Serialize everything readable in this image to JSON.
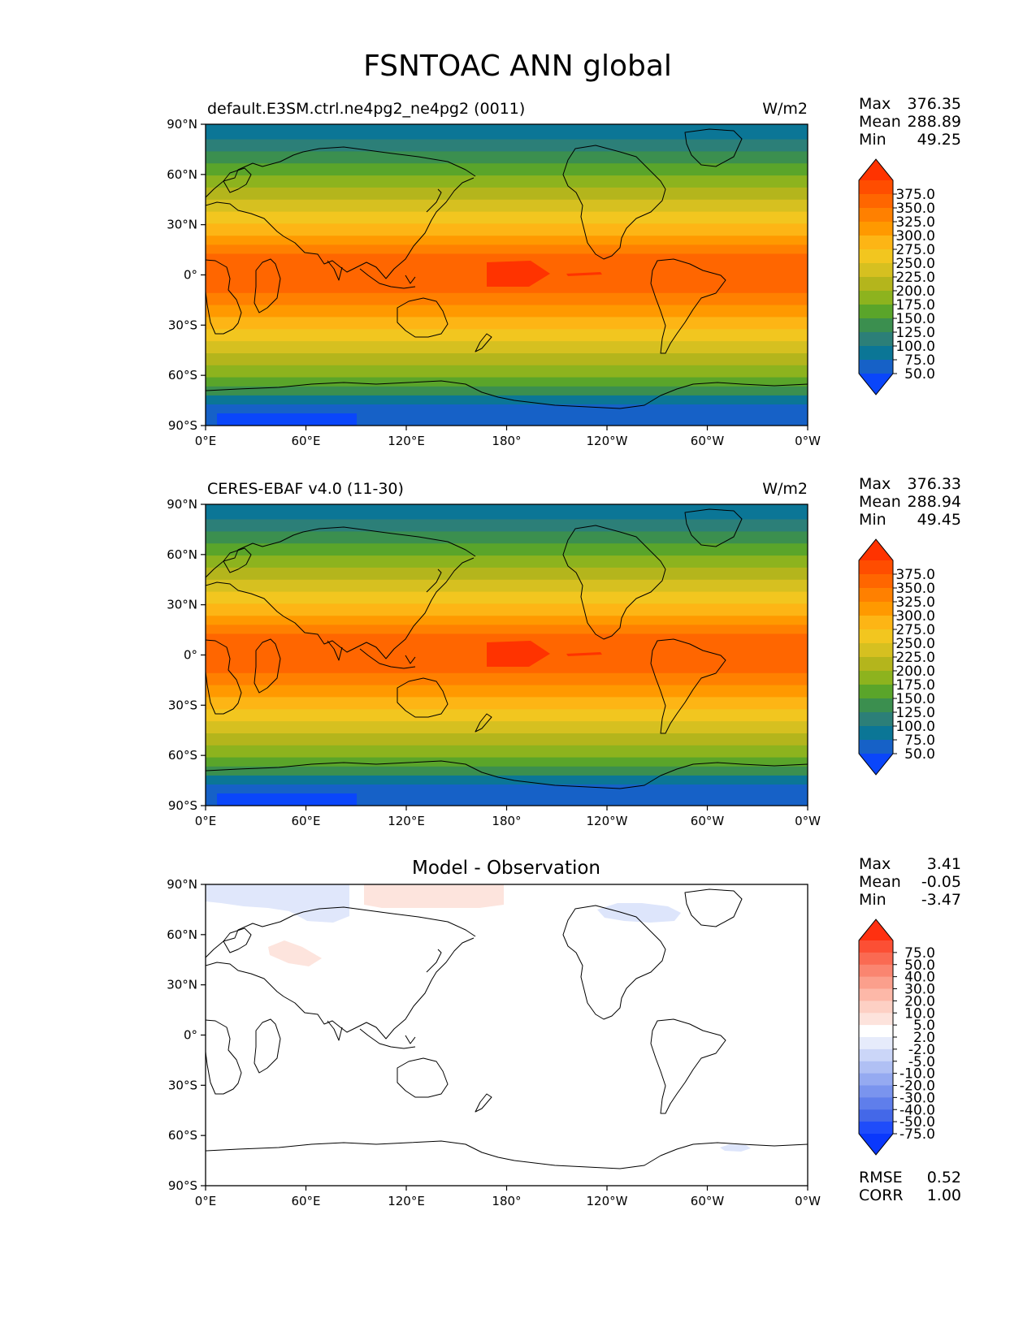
{
  "title": "FSNTOAC ANN global",
  "x_tick_labels": [
    "0°E",
    "60°E",
    "120°E",
    "180°",
    "120°W",
    "60°W",
    "0°W"
  ],
  "y_tick_labels": [
    "90°N",
    "60°N",
    "30°N",
    "0°",
    "30°S",
    "60°S",
    "90°S"
  ],
  "panels": [
    {
      "id": "model",
      "title": "default.E3SM.ctrl.ne4pg2_ne4pg2 (0011)",
      "units": "W/m2",
      "stats": [
        {
          "label": "Max",
          "value": "376.35"
        },
        {
          "label": "Mean",
          "value": "288.89"
        },
        {
          "label": "Min",
          "value": "49.25"
        }
      ],
      "colorbar": {
        "labels": [
          "375.0",
          "350.0",
          "325.0",
          "300.0",
          "275.0",
          "250.0",
          "225.0",
          "200.0",
          "175.0",
          "150.0",
          "125.0",
          "100.0",
          "75.0",
          "50.0"
        ],
        "colors": [
          "#ff3300",
          "#ff4d00",
          "#ff6600",
          "#ff8000",
          "#ff9900",
          "#fdb515",
          "#f2c61f",
          "#d6c020",
          "#b4b51c",
          "#8db31e",
          "#5aa52a",
          "#3b8f4f",
          "#2c7f78",
          "#0b7696",
          "#1661c7",
          "#0a46fa"
        ]
      }
    },
    {
      "id": "obs",
      "title": "CERES-EBAF v4.0 (11-30)",
      "units": "W/m2",
      "stats": [
        {
          "label": "Max",
          "value": "376.33"
        },
        {
          "label": "Mean",
          "value": "288.94"
        },
        {
          "label": "Min",
          "value": "49.45"
        }
      ],
      "colorbar": {
        "labels": [
          "375.0",
          "350.0",
          "325.0",
          "300.0",
          "275.0",
          "250.0",
          "225.0",
          "200.0",
          "175.0",
          "150.0",
          "125.0",
          "100.0",
          "75.0",
          "50.0"
        ],
        "colors": [
          "#ff3300",
          "#ff4d00",
          "#ff6600",
          "#ff8000",
          "#ff9900",
          "#fdb515",
          "#f2c61f",
          "#d6c020",
          "#b4b51c",
          "#8db31e",
          "#5aa52a",
          "#3b8f4f",
          "#2c7f78",
          "#0b7696",
          "#1661c7",
          "#0a46fa"
        ]
      }
    },
    {
      "id": "diff",
      "title": "Model - Observation",
      "units": "",
      "stats": [
        {
          "label": "Max",
          "value": "3.41"
        },
        {
          "label": "Mean",
          "value": "-0.05"
        },
        {
          "label": "Min",
          "value": "-3.47"
        }
      ],
      "extra_stats": [
        {
          "label": "RMSE",
          "value": "0.52"
        },
        {
          "label": "CORR",
          "value": "1.00"
        }
      ],
      "colorbar": {
        "labels": [
          "75.0",
          "50.0",
          "40.0",
          "30.0",
          "20.0",
          "10.0",
          "5.0",
          "2.0",
          "-2.0",
          "-5.0",
          "-10.0",
          "-20.0",
          "-30.0",
          "-40.0",
          "-50.0",
          "-75.0"
        ],
        "colors": [
          "#ff3010",
          "#fc4f34",
          "#fa6a52",
          "#fa8570",
          "#fb9f8c",
          "#fdb8a8",
          "#fdd0c4",
          "#fde3dc",
          "#ffffff",
          "#e6ebfb",
          "#cbd6f8",
          "#b0c0f4",
          "#95aaf1",
          "#7a94ee",
          "#5f7eeb",
          "#4468e8",
          "#1f4cfa",
          "#0a38fc"
        ]
      }
    }
  ]
}
